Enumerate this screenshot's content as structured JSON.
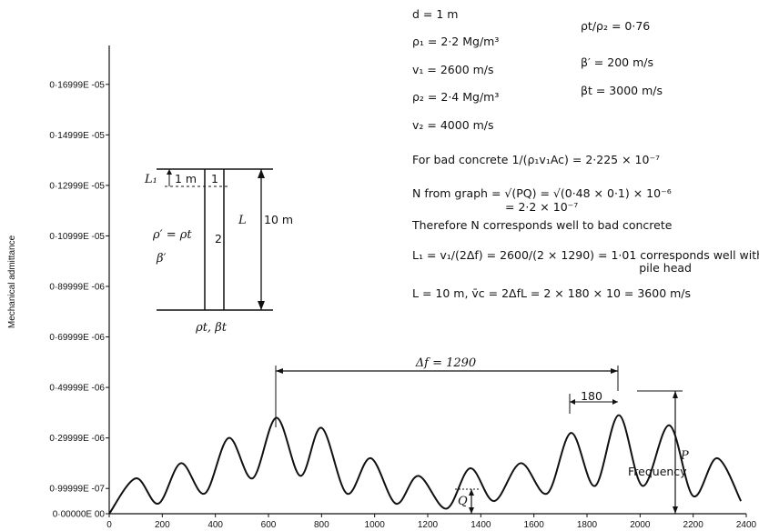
{
  "chart_data": {
    "type": "line",
    "ylabel": "Mechanical admittance",
    "xlabel": "",
    "xlim": [
      0,
      2400
    ],
    "ylim": [
      0,
      1.8
    ],
    "x_ticks": [
      0,
      200,
      400,
      600,
      800,
      1000,
      1200,
      1400,
      1600,
      1800,
      2000,
      2200,
      2400
    ],
    "x_tick_labels": [
      "0",
      "200",
      "400",
      "600",
      "800",
      "1000",
      "1200",
      "1400",
      "1600",
      "1800",
      "2000",
      "2200",
      "2400"
    ],
    "y_ticks": [
      0,
      0.1,
      0.3,
      0.5,
      0.7,
      0.9,
      1.1,
      1.3,
      1.5,
      1.7
    ],
    "y_tick_labels": [
      "0·00000E 00",
      "0·99999E -07",
      "0·29999E -06",
      "0·49999E -06",
      "0·69999E -06",
      "0·89999E -06",
      "0·10999E -05",
      "0·12999E -05",
      "0·14999E -05",
      "0·16999E -05"
    ],
    "series": [
      {
        "name": "",
        "x": [
          0,
          100,
          185,
          270,
          360,
          450,
          540,
          630,
          720,
          800,
          895,
          985,
          1080,
          1165,
          1270,
          1360,
          1450,
          1550,
          1650,
          1740,
          1830,
          1920,
          2010,
          2110,
          2200,
          2290,
          2380
        ],
        "y": [
          0,
          0.14,
          0.04,
          0.2,
          0.08,
          0.3,
          0.14,
          0.38,
          0.15,
          0.34,
          0.08,
          0.22,
          0.04,
          0.15,
          0.02,
          0.18,
          0.05,
          0.2,
          0.08,
          0.32,
          0.11,
          0.39,
          0.11,
          0.35,
          0.07,
          0.22,
          0.05
        ]
      }
    ]
  },
  "annotations": {
    "df_label": "Δf = 1290",
    "peak_spacing_label": "180",
    "frequency_label": "Frequency",
    "p_label": "P",
    "q_label": "Q",
    "params_left": [
      "d = 1 m",
      "ρ₁ = 2·2 Mg/m³",
      "v₁ = 2600 m/s",
      "ρ₂ = 2·4 Mg/m³",
      "v₂ = 4000 m/s"
    ],
    "params_right": [
      "ρt/ρ₂ = 0·76",
      "β′ = 200 m/s",
      "βt = 3000 m/s"
    ],
    "calc_lines": [
      "For bad concrete 1/(ρ₁v₁Ac) = 2·225 × 10⁻⁷",
      "N from graph = √(PQ) = √(0·48 × 0·1) × 10⁻⁶",
      "= 2·2 × 10⁻⁷",
      "Therefore N corresponds well to bad concrete",
      "L₁ = v₁/(2Δf) = 2600/(2 × 1290) = 1·01 corresponds well with",
      "pile head",
      "L = 10 m, v̄c = 2ΔfL = 2 × 180 × 10 = 3600 m/s"
    ]
  },
  "pile_diagram": {
    "l1_label": "L₁",
    "one_m_label": "1 m",
    "small_one_label": "1",
    "two_label": "2",
    "l_label": "L",
    "ten_m_label": "10 m",
    "rho_prime_label": "ρ′ = ρt",
    "beta_prime_label": "β′",
    "base_label": "ρt, βt"
  }
}
